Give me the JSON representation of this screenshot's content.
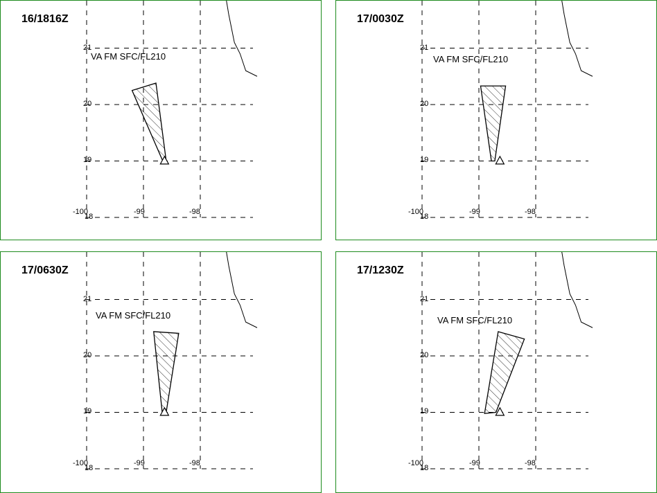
{
  "panels": [
    {
      "time": "16/1816Z",
      "label": "VA FM SFC/FL210",
      "polygon": [
        [
          -99.2,
          20.25
        ],
        [
          -98.78,
          20.38
        ],
        [
          -98.6,
          19.0
        ],
        [
          -98.66,
          19.0
        ]
      ]
    },
    {
      "time": "17/0030Z",
      "label": "VA FM SFC/FL210",
      "polygon": [
        [
          -98.97,
          20.33
        ],
        [
          -98.53,
          20.33
        ],
        [
          -98.72,
          19.0
        ],
        [
          -98.78,
          19.0
        ]
      ]
    },
    {
      "time": "17/0630Z",
      "label": "VA FM SFC/FL210",
      "polygon": [
        [
          -98.82,
          20.43
        ],
        [
          -98.38,
          20.4
        ],
        [
          -98.6,
          19.0
        ],
        [
          -98.67,
          19.0
        ]
      ]
    },
    {
      "time": "17/1230Z",
      "label": "VA FM SFC/FL210",
      "polygon": [
        [
          -98.66,
          20.43
        ],
        [
          -98.2,
          20.3
        ],
        [
          -98.7,
          19.0
        ],
        [
          -98.9,
          18.98
        ]
      ]
    }
  ],
  "lat_ticks": [
    "21",
    "20",
    "19",
    "18"
  ],
  "lon_ticks": [
    "-100",
    "-99",
    "-98"
  ],
  "colors": {
    "border": "#1c8a1c",
    "grid": "#000000"
  }
}
